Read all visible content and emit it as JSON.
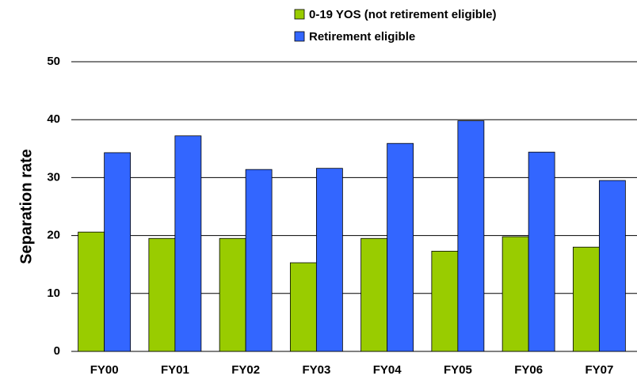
{
  "chart_data": {
    "type": "bar",
    "y_label": "Separation rate",
    "categories": [
      "FY00",
      "FY01",
      "FY02",
      "FY03",
      "FY04",
      "FY05",
      "FY06",
      "FY07"
    ],
    "series": [
      {
        "name": "0-19 YOS (not retirement eligible)",
        "color": "#99cc00",
        "values": [
          20.6,
          19.5,
          19.5,
          15.3,
          19.5,
          17.3,
          19.8,
          18.0
        ]
      },
      {
        "name": "Retirement eligible",
        "color": "#3366ff",
        "values": [
          34.3,
          37.2,
          31.4,
          31.6,
          35.9,
          39.8,
          34.4,
          29.5
        ]
      }
    ],
    "ylim": [
      0,
      50
    ],
    "yticks": [
      0,
      10,
      20,
      30,
      40,
      50
    ],
    "grid": true,
    "legend": "top-right"
  }
}
